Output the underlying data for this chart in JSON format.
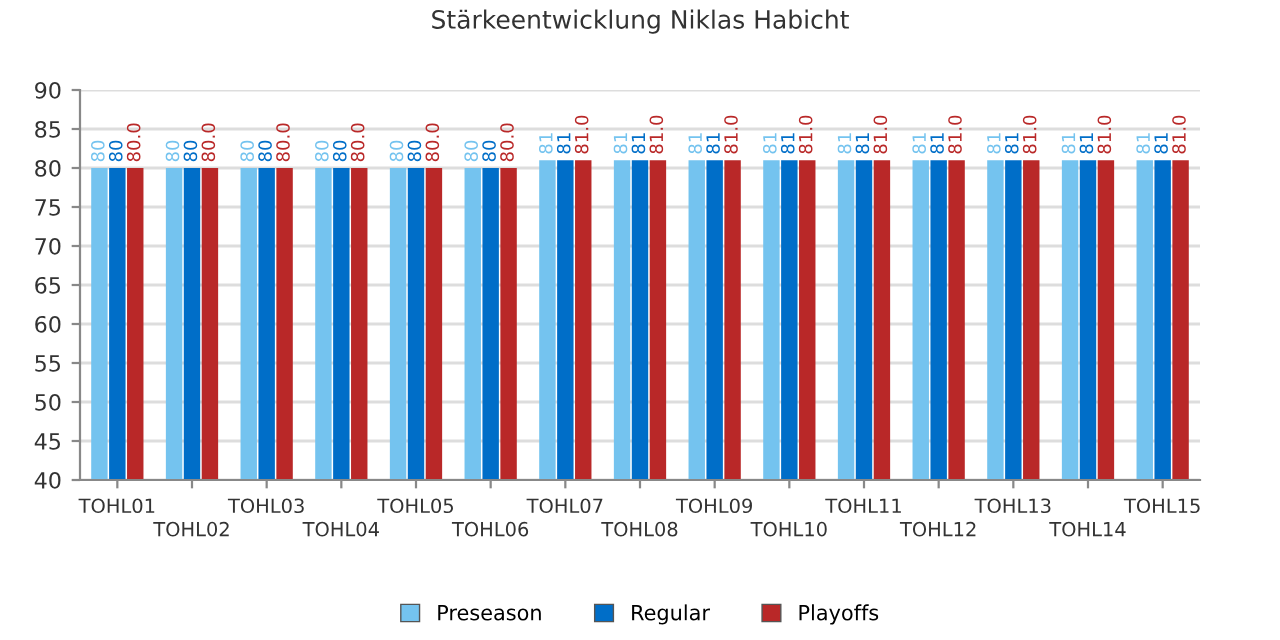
{
  "chart_data": {
    "type": "bar",
    "title": "Stärkeentwicklung Niklas Habicht",
    "categories": [
      "TOHL01",
      "TOHL02",
      "TOHL03",
      "TOHL04",
      "TOHL05",
      "TOHL06",
      "TOHL07",
      "TOHL08",
      "TOHL09",
      "TOHL10",
      "TOHL11",
      "TOHL12",
      "TOHL13",
      "TOHL14",
      "TOHL15"
    ],
    "series": [
      {
        "name": "Preseason",
        "color": "#74c3ef",
        "values": [
          80,
          80,
          80,
          80,
          80,
          80,
          81,
          81,
          81,
          81,
          81,
          81,
          81,
          81,
          81
        ],
        "value_labels": [
          "80",
          "80",
          "80",
          "80",
          "80",
          "80",
          "81",
          "81",
          "81",
          "81",
          "81",
          "81",
          "81",
          "81",
          "81"
        ]
      },
      {
        "name": "Regular",
        "color": "#006ec8",
        "values": [
          80,
          80,
          80,
          80,
          80,
          80,
          81,
          81,
          81,
          81,
          81,
          81,
          81,
          81,
          81
        ],
        "value_labels": [
          "80",
          "80",
          "80",
          "80",
          "80",
          "80",
          "81",
          "81",
          "81",
          "81",
          "81",
          "81",
          "81",
          "81",
          "81"
        ]
      },
      {
        "name": "Playoffs",
        "color": "#b92828",
        "values": [
          80,
          80,
          80,
          80,
          80,
          80,
          81,
          81,
          81,
          81,
          81,
          81,
          81,
          81,
          81
        ],
        "value_labels": [
          "80.0",
          "80.0",
          "80.0",
          "80.0",
          "80.0",
          "80.0",
          "81.0",
          "81.0",
          "81.0",
          "81.0",
          "81.0",
          "81.0",
          "81.0",
          "81.0",
          "81.0"
        ]
      }
    ],
    "ylim": [
      40,
      90
    ],
    "yticks": [
      40,
      45,
      50,
      55,
      60,
      65,
      70,
      75,
      80,
      85,
      90
    ],
    "grid": "y",
    "legend": "bottom"
  }
}
